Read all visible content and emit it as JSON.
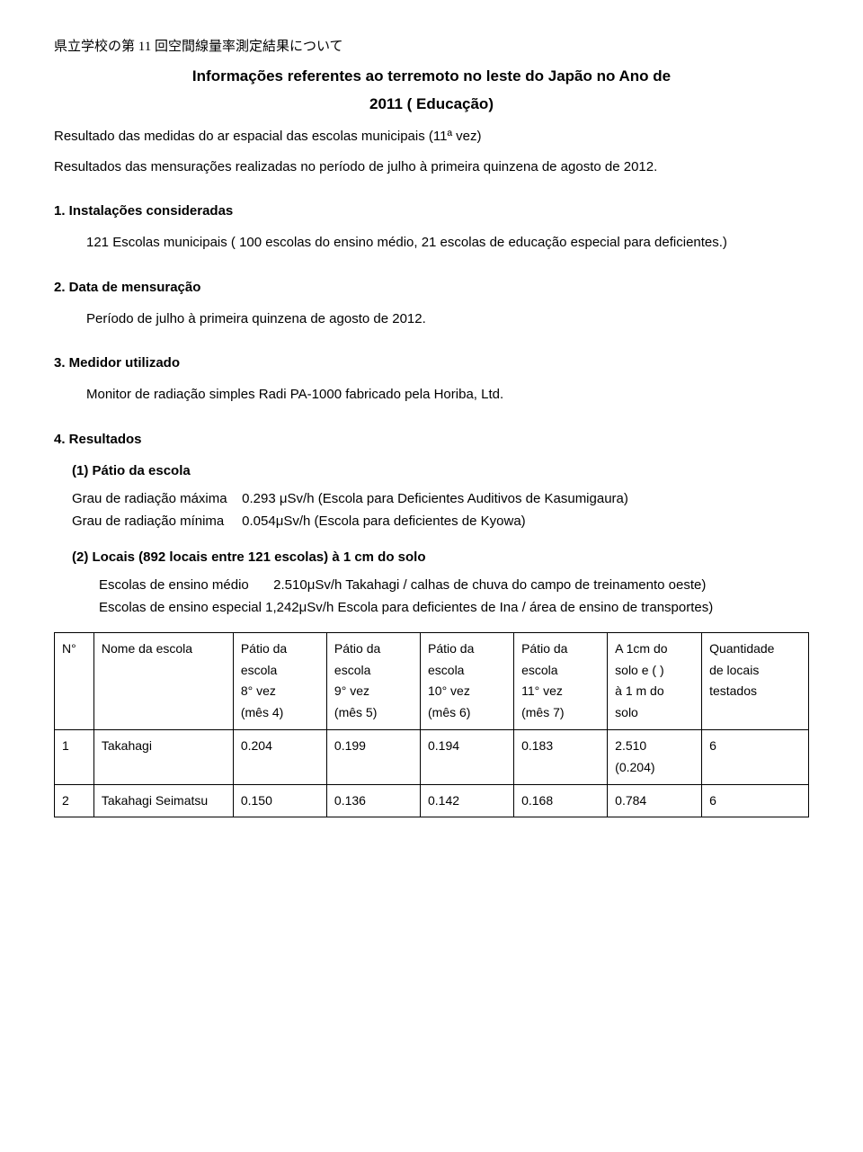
{
  "jp_header": "県立学校の第 11 回空間線量率測定結果について",
  "title_line1": "Informações referentes ao terremoto no leste do Japão no Ano de",
  "title_line2": "2011 ( Educação)",
  "subtitle": "Resultado das medidas do ar espacial das escolas municipais (11ª vez)",
  "para1": "Resultados das mensurações realizadas no período de julho à primeira quinzena de agosto de 2012.",
  "sec1": {
    "head": "1.  Instalações consideradas",
    "body": "121 Escolas municipais ( 100 escolas do ensino médio, 21 escolas de educação especial para deficientes.)"
  },
  "sec2": {
    "head": "2.  Data de mensuração",
    "body": "Período de julho à primeira quinzena de agosto de 2012."
  },
  "sec3": {
    "head": "3. Medidor utilizado",
    "body": "Monitor de radiação simples Radi PA-1000 fabricado pela Horiba, Ltd."
  },
  "sec4": {
    "head": "4. Resultados",
    "sub1_head": "(1) Pátio da escola",
    "max_label": "Grau de radiação máxima",
    "max_val": "0.293 μSv/h (Escola para Deficientes Auditivos de Kasumigaura)",
    "min_label": "Grau de radiação mínima",
    "min_val": "0.054μSv/h (Escola para deficientes de Kyowa)",
    "sub2_head": "(2) Locais (892 locais entre 121 escolas) à 1 cm do solo",
    "medio_label": "Escolas de ensino médio",
    "medio_val": "2.510μSv/h Takahagi / calhas de chuva do campo de treinamento oeste)",
    "especial": "Escolas de ensino especial 1,242μSv/h   Escola para deficientes de Ina / área de ensino de transportes)"
  },
  "table": {
    "headers": {
      "n": "N°",
      "name": "Nome da escola",
      "p8a": "Pátio da",
      "p8b": "escola",
      "p8c": "8° vez",
      "p8d": "(mês 4)",
      "p9a": "Pátio da",
      "p9b": "escola",
      "p9c": "9° vez",
      "p9d": "(mês 5)",
      "p10a": "Pátio da",
      "p10b": "escola",
      "p10c": "10° vez",
      "p10d": "(mês 6)",
      "p11a": "Pátio da",
      "p11b": "escola",
      "p11c": "11° vez",
      "p11d": "(mês 7)",
      "aa": "A 1cm do",
      "ab": "solo e ( )",
      "ac": "à 1 m do",
      "ad": "solo",
      "qa": "Quantidade",
      "qb": "de locais",
      "qc": "testados"
    },
    "rows": [
      {
        "n": "1",
        "name": "Takahagi",
        "p8": "0.204",
        "p9": "0.199",
        "p10": "0.194",
        "p11": "0.183",
        "a1": "2.510",
        "a2": "(0.204)",
        "q": "6"
      },
      {
        "n": "2",
        "name": "Takahagi Seimatsu",
        "p8": "0.150",
        "p9": "0.136",
        "p10": "0.142",
        "p11": "0.168",
        "a1": "0.784",
        "a2": "",
        "q": "6"
      }
    ]
  }
}
